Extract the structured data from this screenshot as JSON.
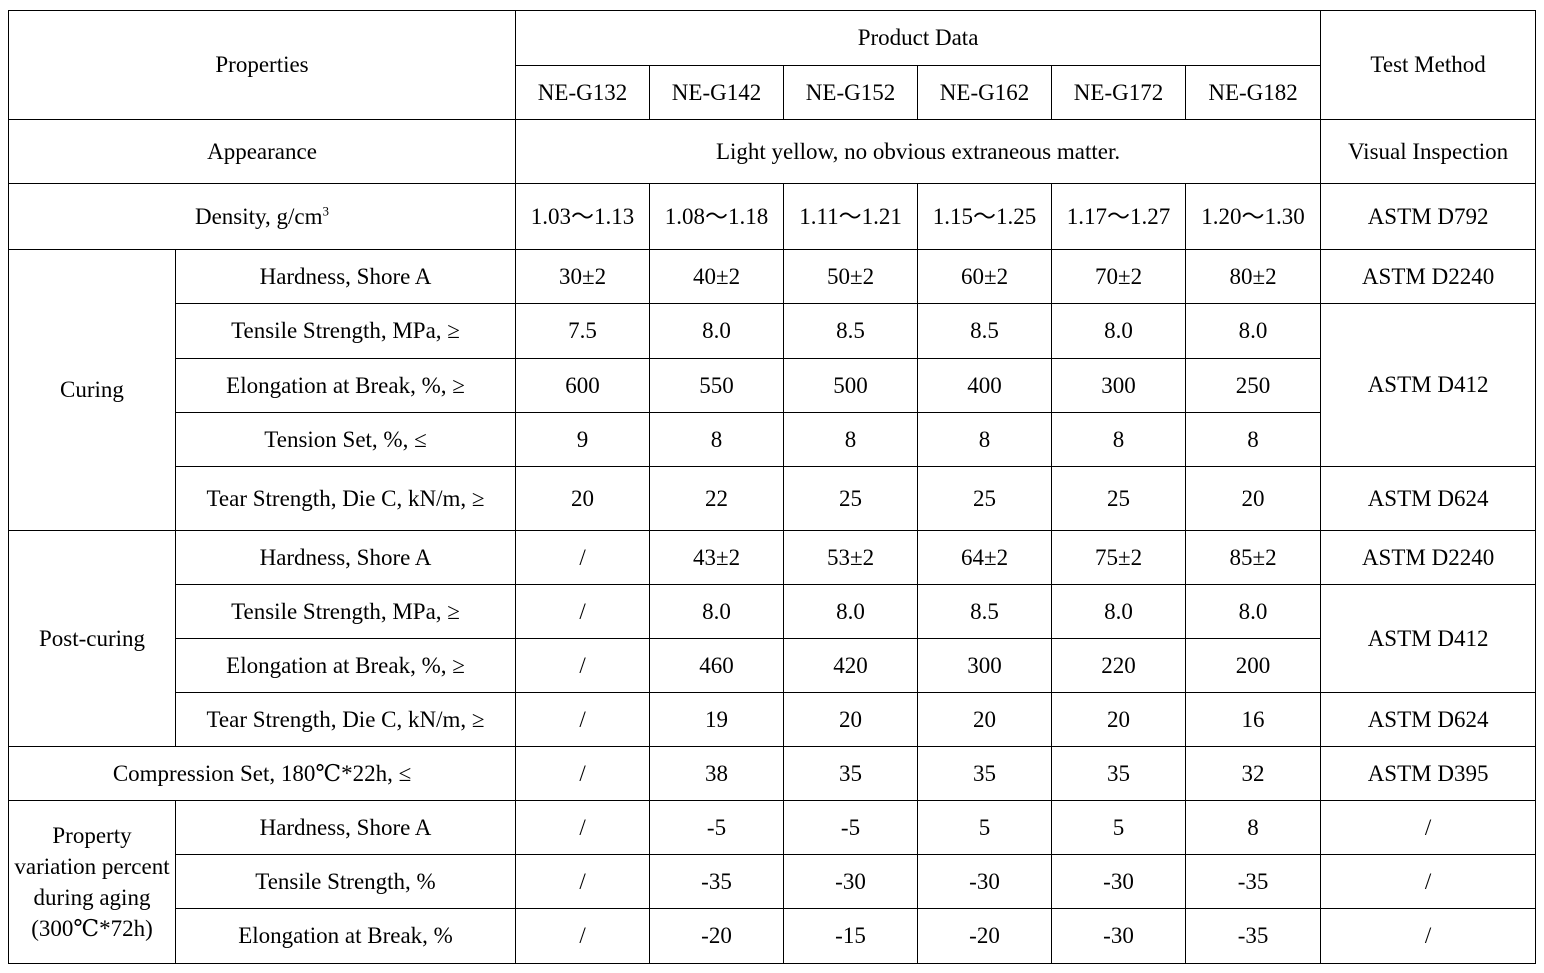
{
  "header": {
    "properties": "Properties",
    "product_data": "Product Data",
    "test_method": "Test Method",
    "products": [
      "NE-G132",
      "NE-G142",
      "NE-G152",
      "NE-G162",
      "NE-G172",
      "NE-G182"
    ]
  },
  "appearance": {
    "label": "Appearance",
    "value": "Light yellow, no obvious extraneous matter.",
    "method": "Visual Inspection"
  },
  "density": {
    "label": "Density, g/cm",
    "unit_sup": "3",
    "values": [
      "1.03～1.13",
      "1.08～1.18",
      "1.11～1.21",
      "1.15～1.25",
      "1.17～1.27",
      "1.20～1.30"
    ],
    "method": "ASTM D792"
  },
  "curing": {
    "group": "Curing",
    "rows": [
      {
        "label": "Hardness, Shore A",
        "values": [
          "30±2",
          "40±2",
          "50±2",
          "60±2",
          "70±2",
          "80±2"
        ],
        "method": "ASTM D2240"
      },
      {
        "label": "Tensile Strength, MPa, ≥",
        "values": [
          "7.5",
          "8.0",
          "8.5",
          "8.5",
          "8.0",
          "8.0"
        ],
        "method": "ASTM D412"
      },
      {
        "label": "Elongation at Break, %, ≥",
        "values": [
          "600",
          "550",
          "500",
          "400",
          "300",
          "250"
        ]
      },
      {
        "label": "Tension Set, %, ≤",
        "values": [
          "9",
          "8",
          "8",
          "8",
          "8",
          "8"
        ]
      },
      {
        "label": "Tear Strength, Die C, kN/m, ≥",
        "values": [
          "20",
          "22",
          "25",
          "25",
          "25",
          "20"
        ],
        "method": "ASTM D624"
      }
    ]
  },
  "post_curing": {
    "group": "Post-curing",
    "rows": [
      {
        "label": "Hardness, Shore A",
        "values": [
          "/",
          "43±2",
          "53±2",
          "64±2",
          "75±2",
          "85±2"
        ],
        "method": "ASTM D2240"
      },
      {
        "label": "Tensile Strength, MPa, ≥",
        "values": [
          "/",
          "8.0",
          "8.0",
          "8.5",
          "8.0",
          "8.0"
        ],
        "method": "ASTM D412"
      },
      {
        "label": "Elongation at Break, %, ≥",
        "values": [
          "/",
          "460",
          "420",
          "300",
          "220",
          "200"
        ]
      },
      {
        "label": "Tear Strength, Die C, kN/m, ≥",
        "values": [
          "/",
          "19",
          "20",
          "20",
          "20",
          "16"
        ],
        "method": "ASTM D624"
      }
    ]
  },
  "compression": {
    "label": "Compression Set, 180℃*22h, ≤",
    "values": [
      "/",
      "38",
      "35",
      "35",
      "35",
      "32"
    ],
    "method": "ASTM D395"
  },
  "aging": {
    "group": "Property variation percent during aging (300℃*72h)",
    "rows": [
      {
        "label": "Hardness, Shore A",
        "values": [
          "/",
          "-5",
          "-5",
          "5",
          "5",
          "8"
        ],
        "method": "/"
      },
      {
        "label": "Tensile Strength, %",
        "values": [
          "/",
          "-35",
          "-30",
          "-30",
          "-30",
          "-35"
        ],
        "method": "/"
      },
      {
        "label": "Elongation at Break, %",
        "values": [
          "/",
          "-20",
          "-15",
          "-20",
          "-30",
          "-35"
        ],
        "method": "/"
      }
    ]
  }
}
